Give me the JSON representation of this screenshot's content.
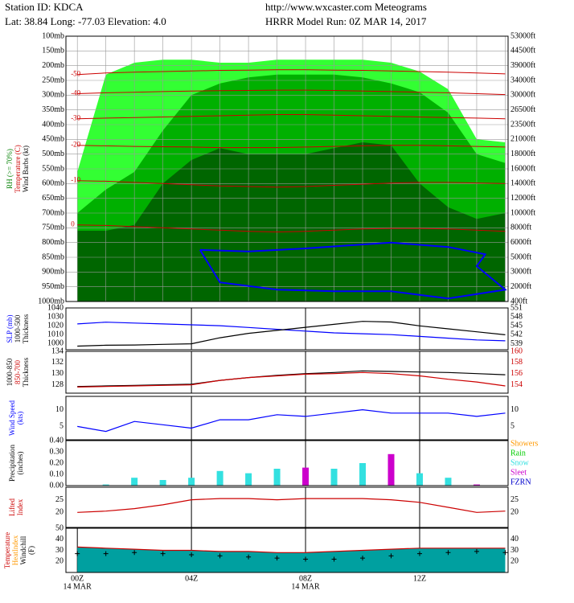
{
  "header": {
    "station": "Station ID: KDCA",
    "location": "Lat:  38.84 Long:  -77.03 Elevation:    4.0",
    "site": "http://www.wxcaster.com Meteograms",
    "run": "HRRR Model Run:  0Z MAR 14, 2017"
  },
  "chart_data": [
    {
      "type": "contour",
      "xlim": [
        -0.4,
        15.1
      ],
      "x": [
        0,
        1,
        2,
        3,
        4,
        5,
        6,
        7,
        8,
        9,
        10,
        11,
        12,
        13,
        14,
        15
      ],
      "ylim": [
        100,
        1000
      ],
      "grid": true,
      "ylabel": [
        {
          "text": "RH (>= 70%)",
          "color": "#008000"
        },
        {
          "text": "Temperature (C)",
          "color": "#cc0000"
        },
        {
          "text": "Wind Barbs (kt)",
          "color": "#000000"
        }
      ],
      "yticks": [
        {
          "value": 100,
          "label": "100mb"
        },
        {
          "value": 150,
          "label": "150mb"
        },
        {
          "value": 200,
          "label": "200mb"
        },
        {
          "value": 250,
          "label": "250mb"
        },
        {
          "value": 300,
          "label": "300mb"
        },
        {
          "value": 350,
          "label": "350mb"
        },
        {
          "value": 400,
          "label": "400mb"
        },
        {
          "value": 450,
          "label": "450mb"
        },
        {
          "value": 500,
          "label": "500mb"
        },
        {
          "value": 550,
          "label": "550mb"
        },
        {
          "value": 600,
          "label": "600mb"
        },
        {
          "value": 650,
          "label": "650mb"
        },
        {
          "value": 700,
          "label": "700mb"
        },
        {
          "value": 750,
          "label": "750mb"
        },
        {
          "value": 800,
          "label": "800mb"
        },
        {
          "value": 850,
          "label": "850mb"
        },
        {
          "value": 900,
          "label": "900mb"
        },
        {
          "value": 950,
          "label": "950mb"
        },
        {
          "value": 1000,
          "label": "1000mb"
        }
      ],
      "height_labels": [
        "53000ft",
        "44500ft",
        "39000ft",
        "34000ft",
        "30000ft",
        "26500ft",
        "23500ft",
        "21000ft",
        "18000ft",
        "16000ft",
        "14000ft",
        "12000ft",
        "10000ft",
        "8000ft",
        "6000ft",
        "5000ft",
        "3000ft",
        "2000ft",
        "400ft"
      ],
      "rh_layers": [
        {
          "color": "#33ff33",
          "top": [
            560,
            230,
            190,
            180,
            180,
            190,
            190,
            180,
            180,
            180,
            180,
            190,
            220,
            280,
            450,
            460
          ]
        },
        {
          "color": "#00b000",
          "top": [
            700,
            620,
            560,
            420,
            300,
            260,
            240,
            230,
            230,
            230,
            240,
            260,
            290,
            360,
            500,
            530
          ]
        },
        {
          "color": "#006600",
          "top": [
            760,
            760,
            740,
            600,
            520,
            480,
            500,
            500,
            500,
            480,
            460,
            470,
            600,
            680,
            720,
            700
          ]
        }
      ],
      "isotherms": [
        {
          "level": -50,
          "color": "#cc0000",
          "values": [
            230,
            225,
            222,
            220,
            218,
            216,
            215,
            214,
            214,
            215,
            216,
            218,
            220,
            222,
            225,
            228
          ]
        },
        {
          "level": -40,
          "color": "#cc0000",
          "values": [
            295,
            292,
            290,
            288,
            286,
            285,
            284,
            283,
            283,
            284,
            286,
            288,
            290,
            292,
            295,
            298
          ]
        },
        {
          "level": -30,
          "color": "#cc0000",
          "values": [
            380,
            378,
            376,
            374,
            372,
            370,
            368,
            366,
            366,
            368,
            370,
            372,
            374,
            376,
            378,
            380
          ]
        },
        {
          "level": -20,
          "color": "#cc0000",
          "values": [
            470,
            472,
            474,
            475,
            476,
            478,
            478,
            478,
            476,
            474,
            472,
            470,
            470,
            472,
            474,
            476
          ]
        },
        {
          "level": -10,
          "color": "#cc0000",
          "values": [
            590,
            592,
            596,
            600,
            604,
            608,
            610,
            612,
            610,
            606,
            602,
            598,
            596,
            596,
            598,
            600
          ]
        },
        {
          "level": 0,
          "color": "#cc0000",
          "values": [
            740,
            742,
            746,
            750,
            754,
            758,
            762,
            764,
            762,
            758,
            754,
            752,
            752,
            754,
            758,
            762
          ]
        }
      ],
      "freezing": {
        "color": "#0000ff",
        "x": [
          4.3,
          6,
          8,
          9.5,
          11,
          13,
          14.3,
          14,
          15,
          13,
          11,
          9,
          7,
          5,
          4.3
        ],
        "values": [
          825,
          830,
          820,
          810,
          800,
          815,
          840,
          880,
          960,
          990,
          965,
          965,
          960,
          935,
          825
        ]
      }
    },
    {
      "type": "line",
      "xlim": [
        -0.4,
        15.1
      ],
      "x": [
        0,
        1,
        2,
        3,
        4,
        5,
        6,
        7,
        8,
        9,
        10,
        11,
        12,
        13,
        14,
        15
      ],
      "ylim": [
        993,
        1040
      ],
      "y2lim": [
        537,
        551
      ],
      "ylabel": [
        {
          "text": "SLP (mb)",
          "color": "#0000ff"
        },
        {
          "text": "1000-500",
          "color": "#000000"
        },
        {
          "text": "Thickness",
          "color": "#000000"
        }
      ],
      "yticks": [
        1000,
        1010,
        1020,
        1030,
        1040
      ],
      "y2ticks": [
        539,
        542,
        545,
        548,
        551
      ],
      "xticks": [
        4,
        8,
        12
      ],
      "series": [
        {
          "color": "#0000ff",
          "values": [
            1022,
            1024,
            1023,
            1022,
            1021,
            1020,
            1018,
            1016,
            1014,
            1012,
            1011,
            1010,
            1008,
            1006,
            1004,
            1003
          ]
        },
        {
          "color": "#000000",
          "axis": "y2",
          "values": [
            538.2,
            538.5,
            538.6,
            538.8,
            539,
            541,
            542.5,
            543.5,
            544.5,
            545.5,
            546.5,
            546.3,
            545,
            544,
            543,
            542
          ]
        }
      ]
    },
    {
      "type": "line",
      "xlim": [
        -0.4,
        15.1
      ],
      "x": [
        0,
        1,
        2,
        3,
        4,
        5,
        6,
        7,
        8,
        9,
        10,
        11,
        12,
        13,
        14,
        15
      ],
      "ylim": [
        126.5,
        134
      ],
      "y2lim": [
        152.5,
        160
      ],
      "ylabel": [
        {
          "text": "1000-850",
          "color": "#000000"
        },
        {
          "text": "850-700",
          "color": "#cc0000"
        },
        {
          "text": "Thickness",
          "color": "#000000"
        }
      ],
      "yticks": [
        128,
        130,
        132,
        134
      ],
      "y2ticks": [
        154,
        156,
        158,
        160
      ],
      "xticks": [
        4,
        8,
        12
      ],
      "series": [
        {
          "color": "#000000",
          "values": [
            127.7,
            127.8,
            127.9,
            128,
            128.1,
            128.8,
            129.3,
            129.7,
            130,
            130.2,
            130.5,
            130.4,
            130.3,
            130.2,
            130,
            129.8
          ]
        },
        {
          "color": "#cc0000",
          "axis": "y2",
          "values": [
            153.6,
            153.7,
            153.8,
            153.9,
            154,
            154.8,
            155.3,
            155.6,
            155.9,
            156,
            156.2,
            156,
            155.6,
            155,
            154.5,
            153.8
          ]
        }
      ]
    },
    {
      "type": "line",
      "xlim": [
        -0.4,
        15.1
      ],
      "x": [
        0,
        1,
        2,
        3,
        4,
        5,
        6,
        7,
        8,
        9,
        10,
        11,
        12,
        13,
        14,
        15
      ],
      "ylim": [
        1,
        14
      ],
      "y2lim": [
        1,
        14
      ],
      "ylabel": [
        {
          "text": "Wind Speed",
          "color": "#0000ff"
        },
        {
          "text": "(kts)",
          "color": "#0000ff"
        }
      ],
      "yticks": [
        5,
        10
      ],
      "y2ticks": [
        5,
        10
      ],
      "xticks": [
        4,
        8,
        12
      ],
      "series": [
        {
          "color": "#0000ff",
          "values": [
            5,
            3.5,
            6.5,
            5.5,
            4.5,
            7,
            7,
            8.5,
            8,
            9,
            10,
            9,
            9,
            9,
            8,
            9
          ]
        }
      ]
    },
    {
      "type": "bar",
      "xlim": [
        -0.4,
        15.1
      ],
      "x": [
        0,
        1,
        2,
        3,
        4,
        5,
        6,
        7,
        8,
        9,
        10,
        11,
        12,
        13,
        14,
        15
      ],
      "ylim": [
        0,
        0.4
      ],
      "ylabel": [
        {
          "text": "Precipitation",
          "color": "#000000"
        },
        {
          "text": "(inches)",
          "color": "#000000"
        }
      ],
      "yticks": [
        {
          "value": 0,
          "label": "0.00"
        },
        {
          "value": 0.1,
          "label": "0.10"
        },
        {
          "value": 0.2,
          "label": "0.20"
        },
        {
          "value": 0.3,
          "label": "0.30"
        },
        {
          "value": 0.4,
          "label": "0.40"
        }
      ],
      "xticks": [
        4,
        8,
        12
      ],
      "series": [
        {
          "name": "Showers",
          "color": "#ff9900",
          "values": [
            0,
            0,
            0,
            0,
            0,
            0,
            0,
            0,
            0,
            0,
            0,
            0,
            0,
            0,
            0,
            0
          ]
        },
        {
          "name": "Rain",
          "color": "#00cc00",
          "values": [
            0,
            0,
            0,
            0,
            0,
            0,
            0,
            0,
            0,
            0,
            0,
            0,
            0,
            0,
            0,
            0
          ]
        },
        {
          "name": "Snow",
          "color": "#33e0e0",
          "values": [
            0,
            0.01,
            0.07,
            0.05,
            0.07,
            0.13,
            0.11,
            0.15,
            0,
            0.15,
            0.2,
            0,
            0.11,
            0.07,
            0,
            0
          ]
        },
        {
          "name": "Sleet",
          "color": "#cc00cc",
          "values": [
            0,
            0,
            0,
            0,
            0,
            0,
            0,
            0,
            0.16,
            0,
            0,
            0.28,
            0,
            0,
            0.01,
            0
          ]
        },
        {
          "name": "FZRN",
          "color": "#0000cc",
          "values": [
            0,
            0,
            0,
            0,
            0,
            0,
            0,
            0,
            0,
            0,
            0,
            0,
            0,
            0,
            0,
            0
          ]
        }
      ]
    },
    {
      "type": "line",
      "xlim": [
        -0.4,
        15.1
      ],
      "x": [
        0,
        1,
        2,
        3,
        4,
        5,
        6,
        7,
        8,
        9,
        10,
        11,
        12,
        13,
        14,
        15
      ],
      "ylim": [
        14,
        30
      ],
      "y2lim": [
        14,
        30
      ],
      "ylabel": [
        {
          "text": "Lifted",
          "color": "#cc0000"
        },
        {
          "text": "Index",
          "color": "#cc0000"
        }
      ],
      "yticks": [
        20,
        25
      ],
      "y2ticks": [
        20,
        25
      ],
      "xticks": [
        4,
        8,
        12
      ],
      "series": [
        {
          "color": "#cc0000",
          "values": [
            20,
            20.5,
            21.5,
            23,
            25,
            25.5,
            25.5,
            25,
            25.5,
            25.5,
            25.5,
            25,
            24,
            22,
            20,
            20.5
          ]
        }
      ]
    },
    {
      "type": "area",
      "xlim": [
        -0.4,
        15.1
      ],
      "x": [
        0,
        1,
        2,
        3,
        4,
        5,
        6,
        7,
        8,
        9,
        10,
        11,
        12,
        13,
        14,
        15
      ],
      "ylim": [
        10,
        50
      ],
      "y2lim": [
        10,
        50
      ],
      "ylabel": [
        {
          "text": "Temperature",
          "color": "#cc0000"
        },
        {
          "text": "HeatIndex",
          "color": "#ff9900"
        },
        {
          "text": "Windchill",
          "color": "#000000"
        },
        {
          "text": "(F)",
          "color": "#000000"
        }
      ],
      "yticks": [
        20,
        30,
        40,
        50
      ],
      "y2ticks": [
        20,
        30,
        40
      ],
      "xticks": [
        {
          "value": 0,
          "label": "00Z"
        },
        {
          "value": 4,
          "label": "04Z"
        },
        {
          "value": 8,
          "label": "08Z"
        },
        {
          "value": 12,
          "label": "12Z"
        }
      ],
      "date_labels": [
        {
          "value": 0,
          "label": "14 MAR"
        },
        {
          "value": 8,
          "label": "14 MAR"
        }
      ],
      "series": [
        {
          "color": "#cc0000",
          "fill": "#00a0a0",
          "values": [
            33,
            32,
            31,
            30,
            30,
            29,
            29,
            28,
            28,
            29,
            30,
            31,
            32,
            32,
            32,
            32
          ]
        },
        {
          "color": "#000000",
          "marker": "+",
          "values": [
            27,
            27,
            28,
            27,
            26,
            25,
            24,
            23,
            22,
            22,
            23,
            25,
            27,
            28,
            29,
            28
          ]
        }
      ]
    }
  ]
}
